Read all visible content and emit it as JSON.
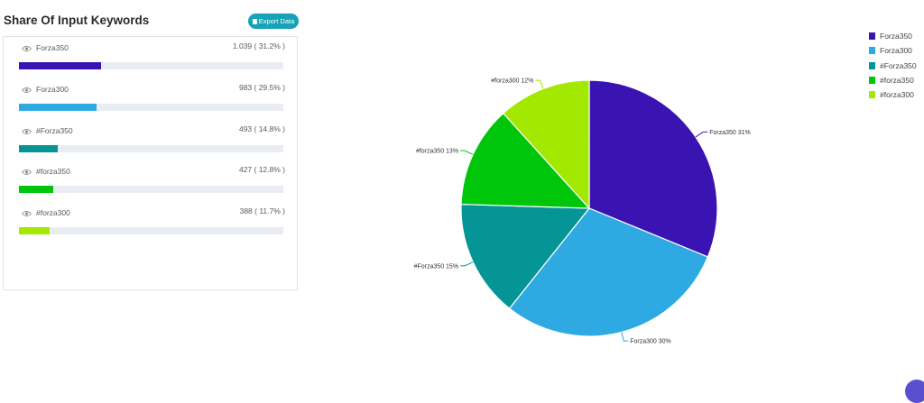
{
  "header": {
    "title": "Share Of Input Keywords",
    "export_label": "Export Data"
  },
  "keywords": [
    {
      "label": "Forza350",
      "value_text": "1.039 ( 31.2% )",
      "share": 31.2,
      "color": "#3a14b2"
    },
    {
      "label": "Forza300",
      "value_text": "983 ( 29.5% )",
      "share": 29.5,
      "color": "#2fa9e1"
    },
    {
      "label": "#Forza350",
      "value_text": "493 ( 14.8% )",
      "share": 14.8,
      "color": "#069597"
    },
    {
      "label": "#forza350",
      "value_text": "427 ( 12.8% )",
      "share": 12.8,
      "color": "#00c60b"
    },
    {
      "label": "#forza300",
      "value_text": "388 ( 11.7% )",
      "share": 11.7,
      "color": "#a3e800"
    }
  ],
  "chart_data": {
    "type": "pie",
    "slices": [
      {
        "label": "Forza350",
        "value": 31.2,
        "display": "Forza350 31%",
        "color": "#3a14b2"
      },
      {
        "label": "Forza300",
        "value": 29.5,
        "display": "Forza300 30%",
        "color": "#2fa9e1"
      },
      {
        "label": "#Forza350",
        "value": 14.8,
        "display": "#Forza350 15%",
        "color": "#069597"
      },
      {
        "label": "#forza350",
        "value": 12.8,
        "display": "#forza350 13%",
        "color": "#00c60b"
      },
      {
        "label": "#forza300",
        "value": 11.7,
        "display": "#forza300 12%",
        "color": "#a3e800"
      }
    ],
    "legend": [
      "Forza350",
      "Forza300",
      "#Forza350",
      "#forza350",
      "#forza300"
    ],
    "legend_position": "top-right"
  },
  "icons": {
    "eye": "eye-icon",
    "export": "document-icon",
    "chat": "chat-icon"
  }
}
